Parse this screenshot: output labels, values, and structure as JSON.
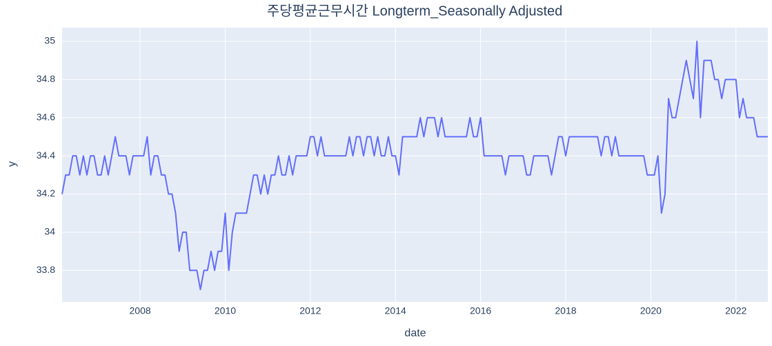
{
  "chart_data": {
    "type": "line",
    "title": "주당평균근무시간 Longterm_Seasonally Adjusted",
    "x_label": "date",
    "y_label": "y",
    "color": "#636efa",
    "grid": true,
    "x": [
      "2006-03",
      "2006-04",
      "2006-05",
      "2006-06",
      "2006-07",
      "2006-08",
      "2006-09",
      "2006-10",
      "2006-11",
      "2006-12",
      "2007-01",
      "2007-02",
      "2007-03",
      "2007-04",
      "2007-05",
      "2007-06",
      "2007-07",
      "2007-08",
      "2007-09",
      "2007-10",
      "2007-11",
      "2007-12",
      "2008-01",
      "2008-02",
      "2008-03",
      "2008-04",
      "2008-05",
      "2008-06",
      "2008-07",
      "2008-08",
      "2008-09",
      "2008-10",
      "2008-11",
      "2008-12",
      "2009-01",
      "2009-02",
      "2009-03",
      "2009-04",
      "2009-05",
      "2009-06",
      "2009-07",
      "2009-08",
      "2009-09",
      "2009-10",
      "2009-11",
      "2009-12",
      "2010-01",
      "2010-02",
      "2010-03",
      "2010-04",
      "2010-05",
      "2010-06",
      "2010-07",
      "2010-08",
      "2010-09",
      "2010-10",
      "2010-11",
      "2010-12",
      "2011-01",
      "2011-02",
      "2011-03",
      "2011-04",
      "2011-05",
      "2011-06",
      "2011-07",
      "2011-08",
      "2011-09",
      "2011-10",
      "2011-11",
      "2011-12",
      "2012-01",
      "2012-02",
      "2012-03",
      "2012-04",
      "2012-05",
      "2012-06",
      "2012-07",
      "2012-08",
      "2012-09",
      "2012-10",
      "2012-11",
      "2012-12",
      "2013-01",
      "2013-02",
      "2013-03",
      "2013-04",
      "2013-05",
      "2013-06",
      "2013-07",
      "2013-08",
      "2013-09",
      "2013-10",
      "2013-11",
      "2013-12",
      "2014-01",
      "2014-02",
      "2014-03",
      "2014-04",
      "2014-05",
      "2014-06",
      "2014-07",
      "2014-08",
      "2014-09",
      "2014-10",
      "2014-11",
      "2014-12",
      "2015-01",
      "2015-02",
      "2015-03",
      "2015-04",
      "2015-05",
      "2015-06",
      "2015-07",
      "2015-08",
      "2015-09",
      "2015-10",
      "2015-11",
      "2015-12",
      "2016-01",
      "2016-02",
      "2016-03",
      "2016-04",
      "2016-05",
      "2016-06",
      "2016-07",
      "2016-08",
      "2016-09",
      "2016-10",
      "2016-11",
      "2016-12",
      "2017-01",
      "2017-02",
      "2017-03",
      "2017-04",
      "2017-05",
      "2017-06",
      "2017-07",
      "2017-08",
      "2017-09",
      "2017-10",
      "2017-11",
      "2017-12",
      "2018-01",
      "2018-02",
      "2018-03",
      "2018-04",
      "2018-05",
      "2018-06",
      "2018-07",
      "2018-08",
      "2018-09",
      "2018-10",
      "2018-11",
      "2018-12",
      "2019-01",
      "2019-02",
      "2019-03",
      "2019-04",
      "2019-05",
      "2019-06",
      "2019-07",
      "2019-08",
      "2019-09",
      "2019-10",
      "2019-11",
      "2019-12",
      "2020-01",
      "2020-02",
      "2020-03",
      "2020-04",
      "2020-05",
      "2020-06",
      "2020-07",
      "2020-08",
      "2020-09",
      "2020-10",
      "2020-11",
      "2020-12",
      "2021-01",
      "2021-02",
      "2021-03",
      "2021-04",
      "2021-05",
      "2021-06",
      "2021-07",
      "2021-08",
      "2021-09",
      "2021-10",
      "2021-11",
      "2021-12",
      "2022-01",
      "2022-02",
      "2022-03",
      "2022-04",
      "2022-05",
      "2022-06",
      "2022-07",
      "2022-08",
      "2022-09",
      "2022-10"
    ],
    "values": [
      34.2,
      34.3,
      34.3,
      34.4,
      34.4,
      34.3,
      34.4,
      34.3,
      34.4,
      34.4,
      34.3,
      34.3,
      34.4,
      34.3,
      34.4,
      34.5,
      34.4,
      34.4,
      34.4,
      34.3,
      34.4,
      34.4,
      34.4,
      34.4,
      34.5,
      34.3,
      34.4,
      34.4,
      34.3,
      34.3,
      34.2,
      34.2,
      34.1,
      33.9,
      34.0,
      34.0,
      33.8,
      33.8,
      33.8,
      33.7,
      33.8,
      33.8,
      33.9,
      33.8,
      33.9,
      33.9,
      34.1,
      33.8,
      34.0,
      34.1,
      34.1,
      34.1,
      34.1,
      34.2,
      34.3,
      34.3,
      34.2,
      34.3,
      34.2,
      34.3,
      34.3,
      34.4,
      34.3,
      34.3,
      34.4,
      34.3,
      34.4,
      34.4,
      34.4,
      34.4,
      34.5,
      34.5,
      34.4,
      34.5,
      34.4,
      34.4,
      34.4,
      34.4,
      34.4,
      34.4,
      34.4,
      34.5,
      34.4,
      34.5,
      34.5,
      34.4,
      34.5,
      34.5,
      34.4,
      34.5,
      34.4,
      34.4,
      34.5,
      34.4,
      34.4,
      34.3,
      34.5,
      34.5,
      34.5,
      34.5,
      34.5,
      34.6,
      34.5,
      34.6,
      34.6,
      34.6,
      34.5,
      34.6,
      34.5,
      34.5,
      34.5,
      34.5,
      34.5,
      34.5,
      34.5,
      34.6,
      34.5,
      34.5,
      34.6,
      34.4,
      34.4,
      34.4,
      34.4,
      34.4,
      34.4,
      34.3,
      34.4,
      34.4,
      34.4,
      34.4,
      34.4,
      34.3,
      34.3,
      34.4,
      34.4,
      34.4,
      34.4,
      34.4,
      34.3,
      34.4,
      34.5,
      34.5,
      34.4,
      34.5,
      34.5,
      34.5,
      34.5,
      34.5,
      34.5,
      34.5,
      34.5,
      34.5,
      34.4,
      34.5,
      34.5,
      34.4,
      34.5,
      34.4,
      34.4,
      34.4,
      34.4,
      34.4,
      34.4,
      34.4,
      34.4,
      34.3,
      34.3,
      34.3,
      34.4,
      34.1,
      34.2,
      34.7,
      34.6,
      34.6,
      34.7,
      34.8,
      34.9,
      34.8,
      34.7,
      35.0,
      34.6,
      34.9,
      34.9,
      34.9,
      34.8,
      34.8,
      34.7,
      34.8,
      34.8,
      34.8,
      34.8,
      34.6,
      34.7,
      34.6,
      34.6,
      34.6,
      34.5,
      34.5,
      34.5,
      34.5
    ],
    "xlim": [
      "2006-03",
      "2022-10"
    ],
    "xticks": [
      {
        "value": "2008-01",
        "label": "2008"
      },
      {
        "value": "2010-01",
        "label": "2010"
      },
      {
        "value": "2012-01",
        "label": "2012"
      },
      {
        "value": "2014-01",
        "label": "2014"
      },
      {
        "value": "2016-01",
        "label": "2016"
      },
      {
        "value": "2018-01",
        "label": "2018"
      },
      {
        "value": "2020-01",
        "label": "2020"
      },
      {
        "value": "2022-01",
        "label": "2022"
      }
    ],
    "ylim": [
      33.635,
      35.072
    ],
    "yticks": [
      33.8,
      34,
      34.2,
      34.4,
      34.6,
      34.8,
      35
    ]
  }
}
